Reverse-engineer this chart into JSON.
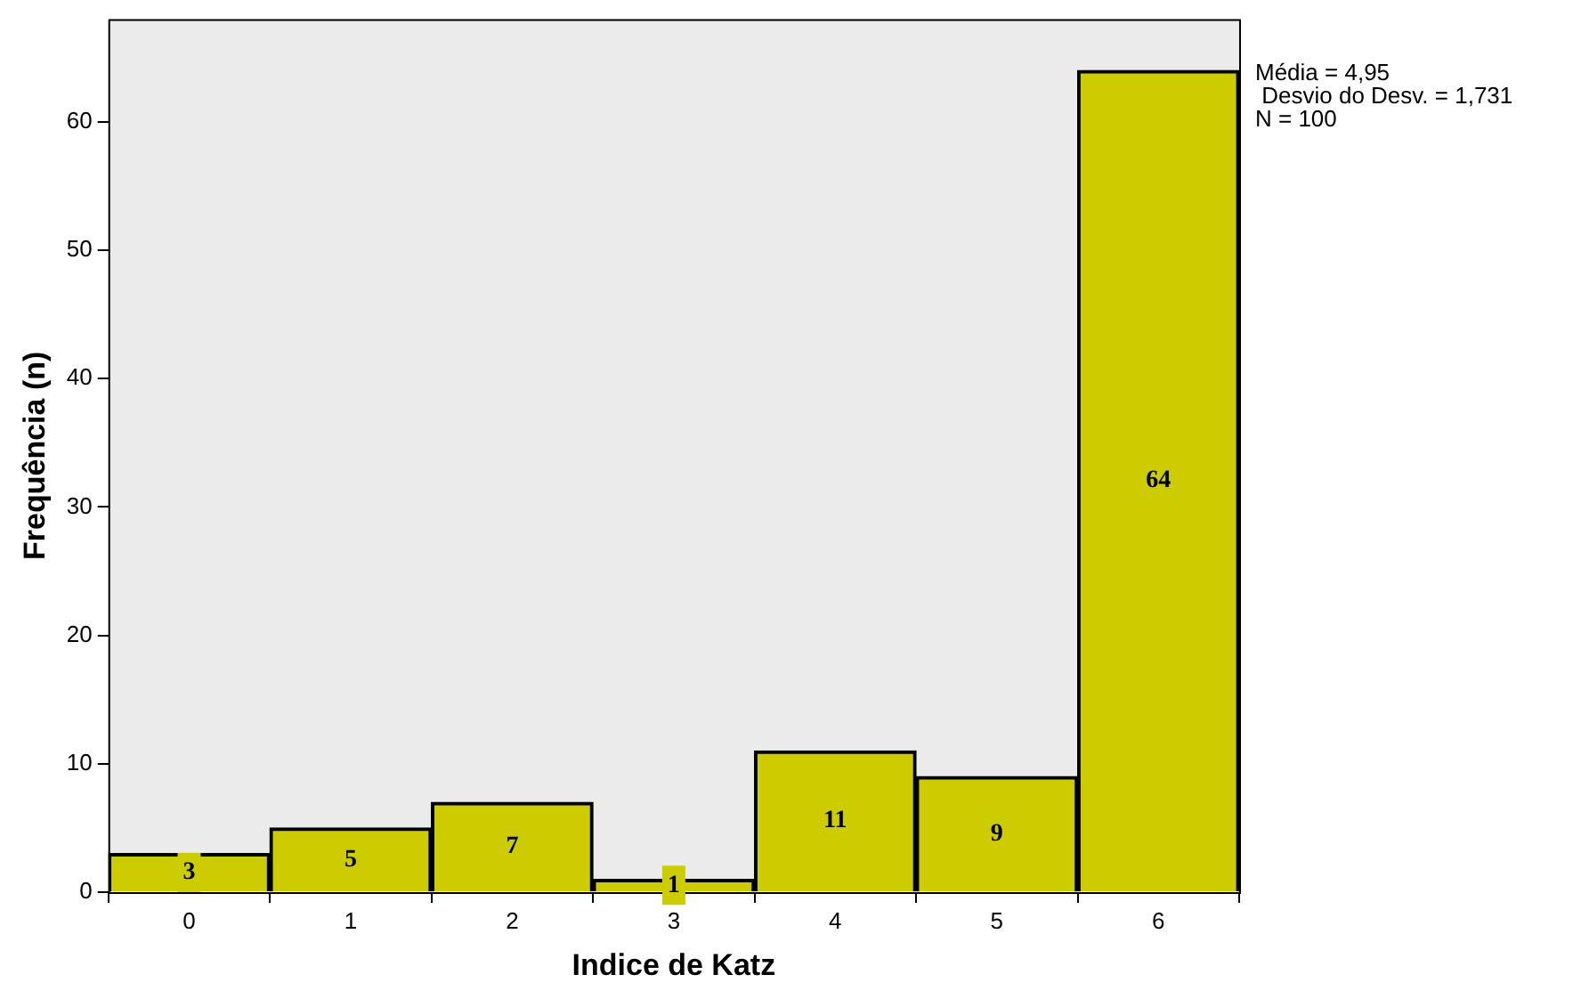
{
  "chart_data": {
    "type": "bar",
    "xlabel": "Indice de Katz",
    "ylabel": "Frequência (n)",
    "categories": [
      "0",
      "1",
      "2",
      "3",
      "4",
      "5",
      "6"
    ],
    "values": [
      3,
      5,
      7,
      1,
      11,
      9,
      64
    ],
    "color": "#cccc00",
    "ylim": [
      0,
      68
    ],
    "yticks": [
      0,
      10,
      20,
      30,
      40,
      50,
      60
    ],
    "grid": false,
    "legend": false,
    "data_labels": true,
    "annotations": [
      "Média = 4,95",
      " Desvio do Desv. = 1,731",
      "N = 100"
    ]
  }
}
